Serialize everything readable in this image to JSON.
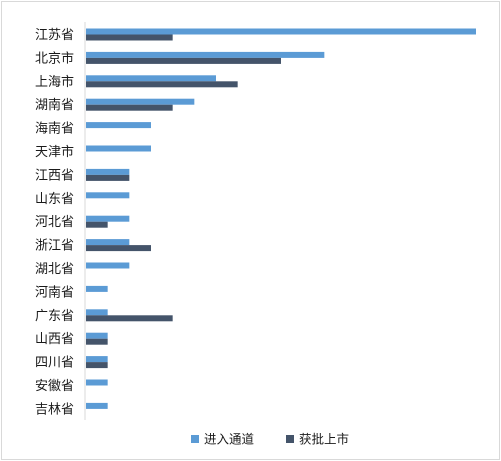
{
  "chart_data": {
    "type": "bar",
    "orientation": "horizontal",
    "categories": [
      "江苏省",
      "北京市",
      "上海市",
      "湖南省",
      "海南省",
      "天津市",
      "江西省",
      "山东省",
      "河北省",
      "浙江省",
      "湖北省",
      "河南省",
      "广东省",
      "山西省",
      "四川省",
      "安徽省",
      "吉林省"
    ],
    "series": [
      {
        "name": "进入通道",
        "color": "#5b9bd5",
        "values": [
          18,
          11,
          6,
          5,
          3,
          3,
          2,
          2,
          2,
          2,
          2,
          1,
          1,
          1,
          1,
          1,
          1
        ]
      },
      {
        "name": "获批上市",
        "color": "#44546a",
        "values": [
          4,
          9,
          7,
          4,
          0,
          0,
          2,
          0,
          1,
          3,
          0,
          0,
          4,
          1,
          1,
          0,
          0
        ]
      }
    ],
    "xlim": [
      0,
      18
    ],
    "grid": false,
    "legend_position": "bottom"
  }
}
